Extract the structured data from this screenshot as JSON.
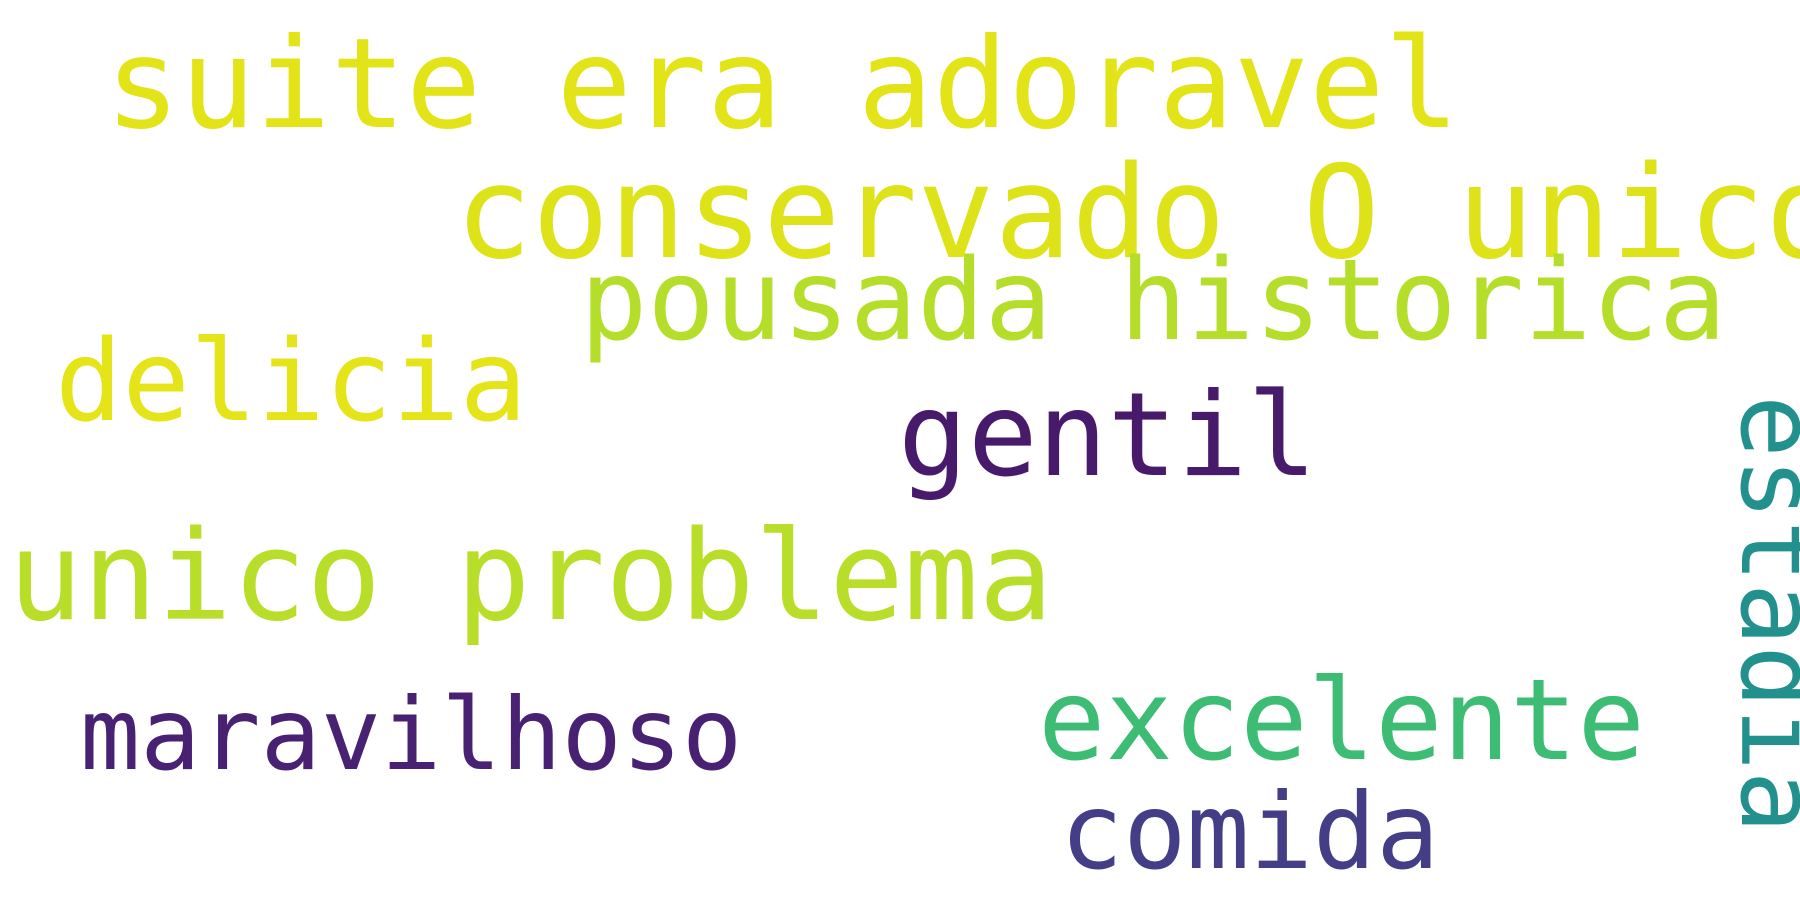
{
  "word_cloud": {
    "background_color": "#ffffff",
    "words": [
      {
        "text": "suite era adoravel",
        "color": "#e2e418",
        "orientation": "horizontal"
      },
      {
        "text": "conservado O unico",
        "color": "#dde318",
        "orientation": "horizontal"
      },
      {
        "text": "pousada historica",
        "color": "#b5de2b",
        "orientation": "horizontal"
      },
      {
        "text": "delicia",
        "color": "#e5e419",
        "orientation": "horizontal"
      },
      {
        "text": "gentil",
        "color": "#481a6c",
        "orientation": "horizontal"
      },
      {
        "text": "unico problema",
        "color": "#b8de29",
        "orientation": "horizontal"
      },
      {
        "text": "maravilhoso",
        "color": "#482173",
        "orientation": "horizontal"
      },
      {
        "text": "excelente",
        "color": "#3dbc74",
        "orientation": "horizontal"
      },
      {
        "text": "comida",
        "color": "#433e85",
        "orientation": "horizontal"
      },
      {
        "text": "estadia",
        "color": "#22908c",
        "orientation": "vertical"
      }
    ]
  }
}
